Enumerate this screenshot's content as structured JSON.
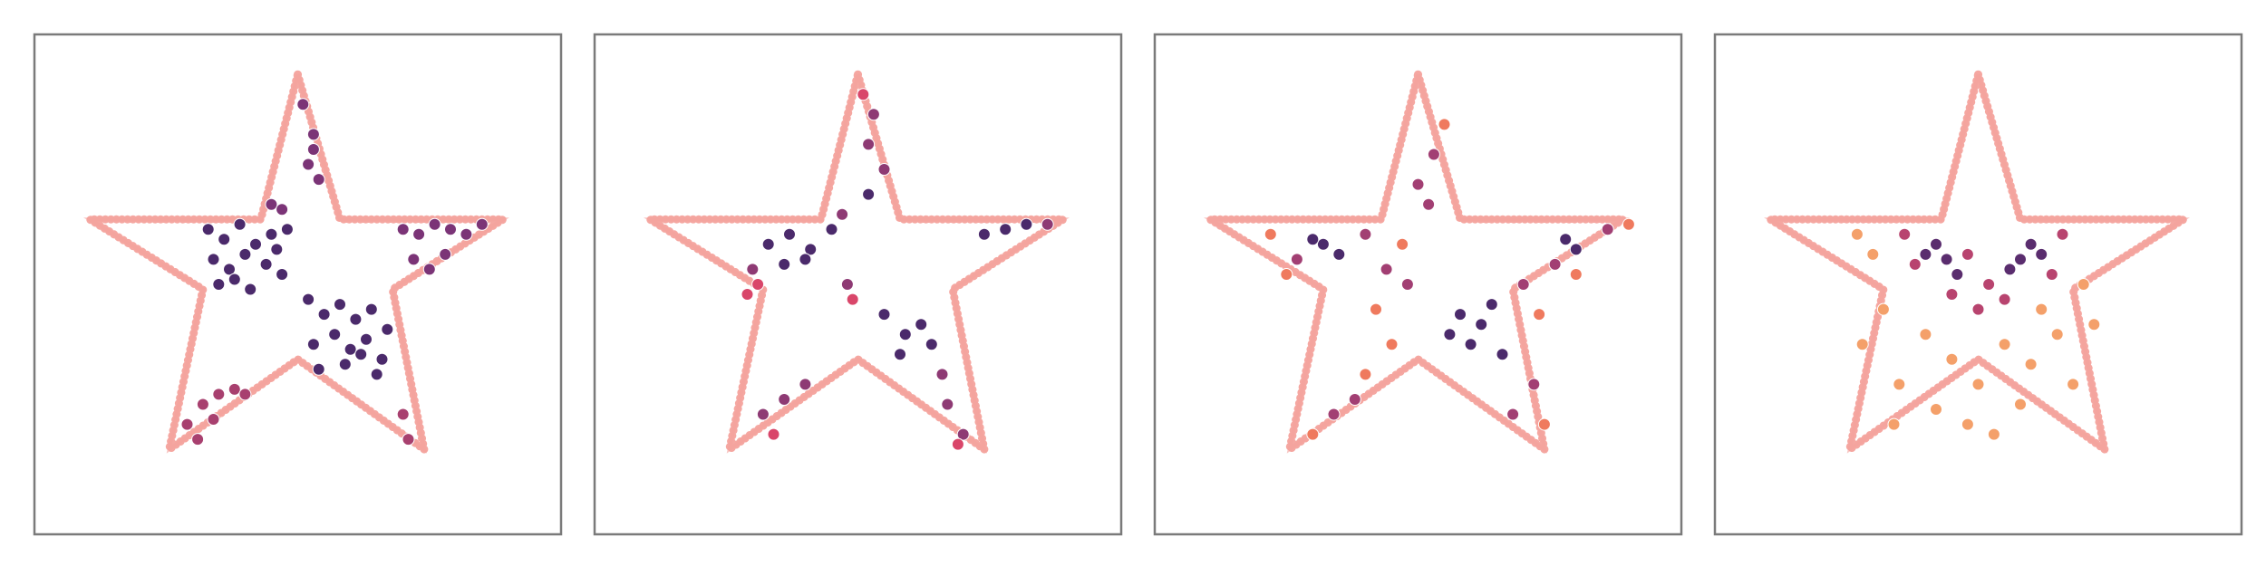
{
  "chart_data": [
    {
      "type": "scatter",
      "xlim": [
        0,
        1
      ],
      "ylim": [
        0,
        1
      ],
      "outline": {
        "color": "#f4a29c",
        "x": [
          0.5,
          0.58,
          0.89,
          0.68,
          0.74,
          0.5,
          0.256,
          0.32,
          0.105,
          0.43,
          0.5
        ],
        "y": [
          0.92,
          0.63,
          0.63,
          0.49,
          0.17,
          0.35,
          0.17,
          0.49,
          0.63,
          0.63,
          0.92
        ]
      },
      "series": [
        {
          "color": "#4b2a6b",
          "x": [
            0.33,
            0.36,
            0.39,
            0.42,
            0.45,
            0.48,
            0.34,
            0.37,
            0.4,
            0.44,
            0.47,
            0.35,
            0.38,
            0.41,
            0.46,
            0.52,
            0.55,
            0.58,
            0.61,
            0.64,
            0.67,
            0.53,
            0.57,
            0.6,
            0.63,
            0.66,
            0.54,
            0.59,
            0.62,
            0.65
          ],
          "y": [
            0.61,
            0.59,
            0.62,
            0.58,
            0.6,
            0.61,
            0.55,
            0.53,
            0.56,
            0.54,
            0.52,
            0.5,
            0.51,
            0.49,
            0.57,
            0.47,
            0.44,
            0.46,
            0.43,
            0.45,
            0.41,
            0.38,
            0.4,
            0.37,
            0.39,
            0.35,
            0.33,
            0.34,
            0.36,
            0.32
          ]
        },
        {
          "color": "#7b3477",
          "x": [
            0.7,
            0.73,
            0.76,
            0.79,
            0.82,
            0.85,
            0.72,
            0.75,
            0.78,
            0.51,
            0.53,
            0.52,
            0.54,
            0.53,
            0.45,
            0.47
          ],
          "y": [
            0.61,
            0.6,
            0.62,
            0.61,
            0.6,
            0.62,
            0.55,
            0.53,
            0.56,
            0.86,
            0.8,
            0.74,
            0.71,
            0.77,
            0.66,
            0.65
          ]
        },
        {
          "color": "#a8406f",
          "x": [
            0.29,
            0.32,
            0.35,
            0.38,
            0.31,
            0.34,
            0.4,
            0.7,
            0.71
          ],
          "y": [
            0.22,
            0.26,
            0.28,
            0.29,
            0.19,
            0.23,
            0.28,
            0.24,
            0.19
          ]
        }
      ]
    },
    {
      "type": "scatter",
      "xlim": [
        0,
        1
      ],
      "ylim": [
        0,
        1
      ],
      "outline": {
        "color": "#f4a29c",
        "x": [
          0.5,
          0.58,
          0.89,
          0.68,
          0.74,
          0.5,
          0.256,
          0.32,
          0.105,
          0.43,
          0.5
        ],
        "y": [
          0.92,
          0.63,
          0.63,
          0.49,
          0.17,
          0.35,
          0.17,
          0.49,
          0.63,
          0.63,
          0.92
        ]
      },
      "series": [
        {
          "color": "#4b2a6b",
          "x": [
            0.33,
            0.37,
            0.41,
            0.45,
            0.36,
            0.4,
            0.55,
            0.59,
            0.62,
            0.58,
            0.64,
            0.74,
            0.78,
            0.82,
            0.52
          ],
          "y": [
            0.58,
            0.6,
            0.57,
            0.61,
            0.54,
            0.55,
            0.44,
            0.4,
            0.42,
            0.36,
            0.38,
            0.6,
            0.61,
            0.62,
            0.68
          ]
        },
        {
          "color": "#8e3a74",
          "x": [
            0.3,
            0.48,
            0.52,
            0.53,
            0.55,
            0.66,
            0.67,
            0.7,
            0.32,
            0.36,
            0.4,
            0.86,
            0.47
          ],
          "y": [
            0.53,
            0.5,
            0.78,
            0.84,
            0.73,
            0.32,
            0.26,
            0.2,
            0.24,
            0.27,
            0.3,
            0.62,
            0.64
          ]
        },
        {
          "color": "#d9466a",
          "x": [
            0.29,
            0.31,
            0.49,
            0.51,
            0.69,
            0.34
          ],
          "y": [
            0.48,
            0.5,
            0.47,
            0.88,
            0.18,
            0.2
          ]
        }
      ]
    },
    {
      "type": "scatter",
      "xlim": [
        0,
        1
      ],
      "ylim": [
        0,
        1
      ],
      "outline": {
        "color": "#f4a29c",
        "x": [
          0.5,
          0.58,
          0.89,
          0.68,
          0.74,
          0.5,
          0.256,
          0.32,
          0.105,
          0.43,
          0.5
        ],
        "y": [
          0.92,
          0.63,
          0.63,
          0.49,
          0.17,
          0.35,
          0.17,
          0.49,
          0.63,
          0.63,
          0.92
        ]
      },
      "series": [
        {
          "color": "#4b2a6b",
          "x": [
            0.32,
            0.35,
            0.3,
            0.58,
            0.62,
            0.6,
            0.64,
            0.78,
            0.8,
            0.56,
            0.66
          ],
          "y": [
            0.58,
            0.56,
            0.59,
            0.44,
            0.42,
            0.38,
            0.46,
            0.59,
            0.57,
            0.4,
            0.36
          ]
        },
        {
          "color": "#a23f73",
          "x": [
            0.27,
            0.4,
            0.44,
            0.48,
            0.5,
            0.53,
            0.7,
            0.72,
            0.38,
            0.34,
            0.68,
            0.76,
            0.86,
            0.52
          ],
          "y": [
            0.55,
            0.6,
            0.53,
            0.5,
            0.7,
            0.76,
            0.5,
            0.3,
            0.27,
            0.24,
            0.24,
            0.54,
            0.61,
            0.66
          ]
        },
        {
          "color": "#ef7a5e",
          "x": [
            0.22,
            0.25,
            0.42,
            0.45,
            0.47,
            0.55,
            0.73,
            0.74,
            0.9,
            0.3,
            0.8,
            0.4
          ],
          "y": [
            0.6,
            0.52,
            0.45,
            0.38,
            0.58,
            0.82,
            0.44,
            0.22,
            0.62,
            0.2,
            0.52,
            0.32
          ]
        }
      ]
    },
    {
      "type": "scatter",
      "xlim": [
        0,
        1
      ],
      "ylim": [
        0,
        1
      ],
      "outline": {
        "color": "#f4a29c",
        "x": [
          0.5,
          0.58,
          0.89,
          0.68,
          0.74,
          0.5,
          0.256,
          0.32,
          0.105,
          0.43,
          0.5
        ],
        "y": [
          0.92,
          0.63,
          0.63,
          0.49,
          0.17,
          0.35,
          0.17,
          0.49,
          0.63,
          0.63,
          0.92
        ]
      },
      "series": [
        {
          "color": "#5a2d6e",
          "x": [
            0.42,
            0.44,
            0.4,
            0.6,
            0.62,
            0.58,
            0.46,
            0.56
          ],
          "y": [
            0.58,
            0.55,
            0.56,
            0.58,
            0.56,
            0.55,
            0.52,
            0.53
          ]
        },
        {
          "color": "#b8446f",
          "x": [
            0.36,
            0.48,
            0.52,
            0.66,
            0.5,
            0.45,
            0.55,
            0.38,
            0.64
          ],
          "y": [
            0.6,
            0.56,
            0.5,
            0.6,
            0.45,
            0.48,
            0.47,
            0.54,
            0.52
          ]
        },
        {
          "color": "#f4a06a",
          "x": [
            0.3,
            0.32,
            0.28,
            0.35,
            0.4,
            0.45,
            0.5,
            0.55,
            0.6,
            0.65,
            0.68,
            0.7,
            0.42,
            0.48,
            0.58,
            0.62,
            0.34,
            0.72,
            0.27,
            0.53
          ],
          "y": [
            0.56,
            0.45,
            0.38,
            0.3,
            0.4,
            0.35,
            0.3,
            0.38,
            0.34,
            0.4,
            0.3,
            0.5,
            0.25,
            0.22,
            0.26,
            0.45,
            0.22,
            0.42,
            0.6,
            0.2
          ]
        }
      ]
    }
  ]
}
